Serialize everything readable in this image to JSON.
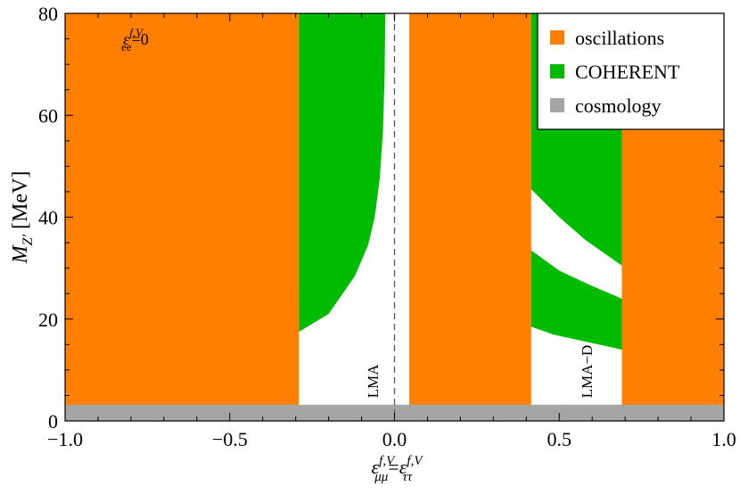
{
  "colors": {
    "oscillations": "#FF8000",
    "coherent": "#00BB00",
    "cosmology": "#A5A5A5",
    "frame": "#000000",
    "zero_line": "#555555"
  },
  "chart_data": {
    "type": "area",
    "xlabel": {
      "base": "ε",
      "sub1": "μμ",
      "sup1": "f,V",
      "eq": "=",
      "base2": "ε",
      "sub2": "ττ",
      "sup2": "f,V"
    },
    "ylabel": {
      "base": "M",
      "sub": "Z′",
      "unit": " [MeV]"
    },
    "xlim": [
      -1.0,
      1.0
    ],
    "ylim": [
      0,
      80
    ],
    "xticks": [
      "−1.0",
      "−0.5",
      "0.0",
      "0.5",
      "1.0"
    ],
    "xtick_values": [
      -1.0,
      -0.5,
      0.0,
      0.5,
      1.0
    ],
    "yticks": [
      "0",
      "20",
      "40",
      "60",
      "80"
    ],
    "ytick_values": [
      0,
      20,
      40,
      60,
      80
    ],
    "annotation_inset": {
      "base": "ε",
      "sub": "ee",
      "sup": "f,V",
      "rest": "=0"
    },
    "region_labels": [
      "LMA",
      "LMA−D"
    ],
    "region_label_x": [
      -0.05,
      0.6
    ],
    "region_label_y": [
      10,
      10
    ],
    "legend": {
      "position": "top-right",
      "entries": [
        {
          "label": "oscillations",
          "color_key": "oscillations"
        },
        {
          "label": "COHERENT",
          "color_key": "coherent"
        },
        {
          "label": "cosmology",
          "color_key": "cosmology"
        }
      ]
    },
    "regions": {
      "oscillations": [
        {
          "name": "osc-left",
          "points": [
            [
              -1.0,
              0
            ],
            [
              -0.29,
              0
            ],
            [
              -0.29,
              80
            ],
            [
              -1.0,
              80
            ]
          ]
        },
        {
          "name": "osc-center",
          "points": [
            [
              0.045,
              0
            ],
            [
              0.415,
              0
            ],
            [
              0.415,
              80
            ],
            [
              0.045,
              80
            ]
          ]
        },
        {
          "name": "osc-right",
          "points": [
            [
              0.69,
              0
            ],
            [
              1.0,
              0
            ],
            [
              1.0,
              58
            ],
            [
              0.69,
              58
            ]
          ]
        }
      ],
      "coherent": [
        {
          "name": "coh-left",
          "points": [
            [
              -0.29,
              17.5
            ],
            [
              -0.2,
              21
            ],
            [
              -0.12,
              28.5
            ],
            [
              -0.08,
              34.5
            ],
            [
              -0.06,
              40
            ],
            [
              -0.045,
              47.5
            ],
            [
              -0.035,
              57
            ],
            [
              -0.03,
              68
            ],
            [
              -0.028,
              80
            ],
            [
              -0.29,
              80
            ]
          ]
        },
        {
          "name": "coh-right-lower",
          "points": [
            [
              0.415,
              18.5
            ],
            [
              0.48,
              17
            ],
            [
              0.55,
              16
            ],
            [
              0.62,
              15
            ],
            [
              0.69,
              14
            ],
            [
              0.69,
              24
            ],
            [
              0.6,
              26.5
            ],
            [
              0.5,
              29.5
            ],
            [
              0.415,
              33.5
            ]
          ]
        },
        {
          "name": "coh-right-upper",
          "points": [
            [
              0.415,
              45.5
            ],
            [
              0.5,
              40
            ],
            [
              0.58,
              35.5
            ],
            [
              0.69,
              30.5
            ],
            [
              0.69,
              80
            ],
            [
              0.415,
              80
            ]
          ]
        }
      ],
      "cosmology": [
        {
          "name": "cosmology-band",
          "points": [
            [
              -1.0,
              0
            ],
            [
              1.0,
              0
            ],
            [
              1.0,
              3.2
            ],
            [
              -1.0,
              3.2
            ]
          ]
        }
      ]
    }
  }
}
